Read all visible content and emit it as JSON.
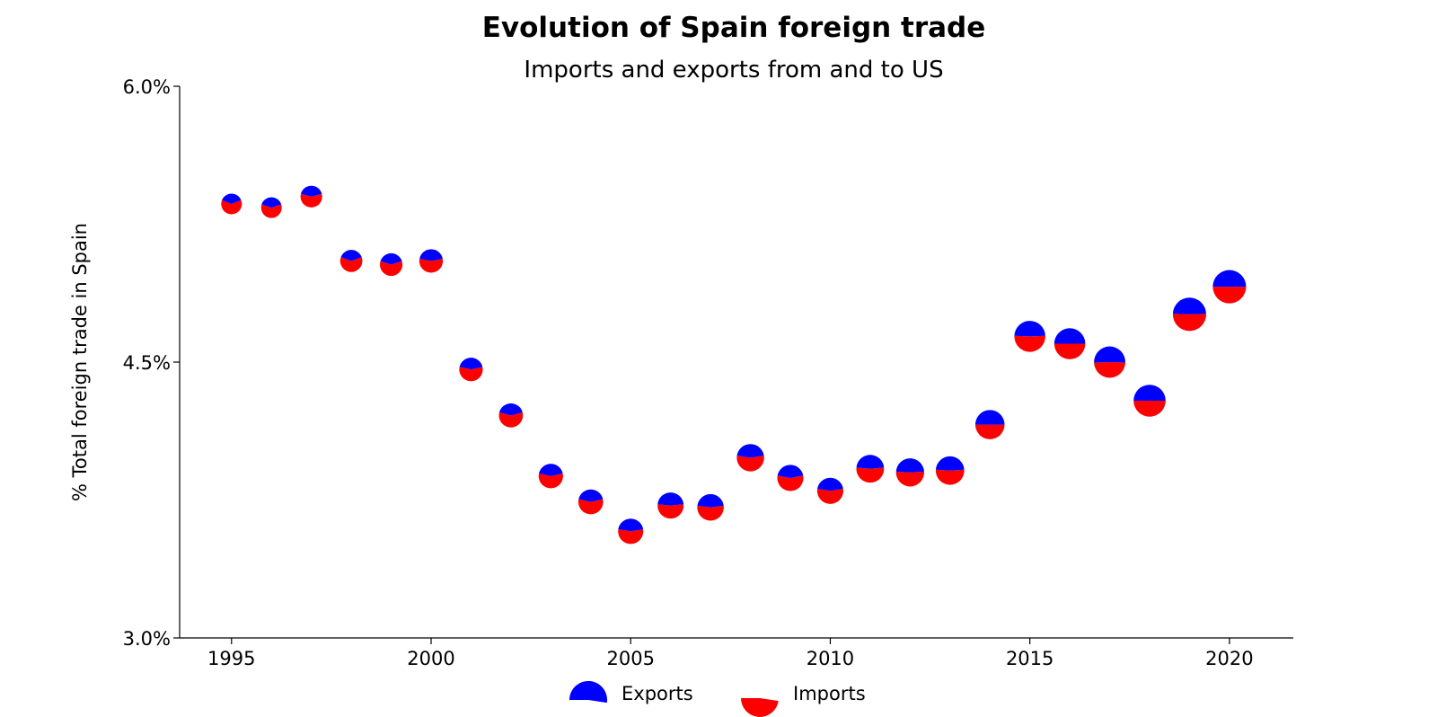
{
  "chart_data": {
    "type": "scatter",
    "marker": "split-pie",
    "title": "Evolution of Spain foreign trade",
    "subtitle": "Imports and exports from and to US",
    "xlabel": "",
    "ylabel": "% Total foreign trade in Spain",
    "xlim": [
      1993.7,
      2021.6
    ],
    "ylim": [
      3.0,
      6.0
    ],
    "xticks": [
      1995,
      2000,
      2005,
      2010,
      2015,
      2020
    ],
    "yticks": [
      3.0,
      4.5,
      6.0
    ],
    "ytick_labels": [
      "3.0%",
      "4.5%",
      "6.0%"
    ],
    "grid": false,
    "legend": {
      "placement": "bottom-center",
      "entries": [
        "Exports",
        "Imports"
      ]
    },
    "colors": {
      "exports": "#0000ff",
      "imports": "#ff0000"
    },
    "x": [
      1995,
      1996,
      1997,
      1998,
      1999,
      2000,
      2001,
      2002,
      2003,
      2004,
      2005,
      2006,
      2007,
      2008,
      2009,
      2010,
      2011,
      2012,
      2013,
      2014,
      2015,
      2016,
      2017,
      2018,
      2019,
      2020
    ],
    "y": [
      5.36,
      5.34,
      5.4,
      5.05,
      5.03,
      5.05,
      4.46,
      4.21,
      3.88,
      3.74,
      3.58,
      3.72,
      3.71,
      3.98,
      3.87,
      3.8,
      3.92,
      3.9,
      3.91,
      4.16,
      4.64,
      4.6,
      4.5,
      4.29,
      4.76,
      4.91
    ],
    "export_share": [
      0.38,
      0.4,
      0.42,
      0.39,
      0.4,
      0.44,
      0.43,
      0.42,
      0.43,
      0.43,
      0.45,
      0.47,
      0.46,
      0.45,
      0.44,
      0.45,
      0.47,
      0.48,
      0.48,
      0.5,
      0.49,
      0.5,
      0.51,
      0.5,
      0.49,
      0.5
    ],
    "total_trade": [
      1.0,
      1.0,
      1.1,
      1.15,
      1.2,
      1.3,
      1.3,
      1.35,
      1.4,
      1.45,
      1.5,
      1.6,
      1.65,
      1.75,
      1.6,
      1.6,
      1.8,
      1.85,
      1.9,
      2.0,
      2.25,
      2.25,
      2.3,
      2.4,
      2.6,
      2.6
    ]
  }
}
